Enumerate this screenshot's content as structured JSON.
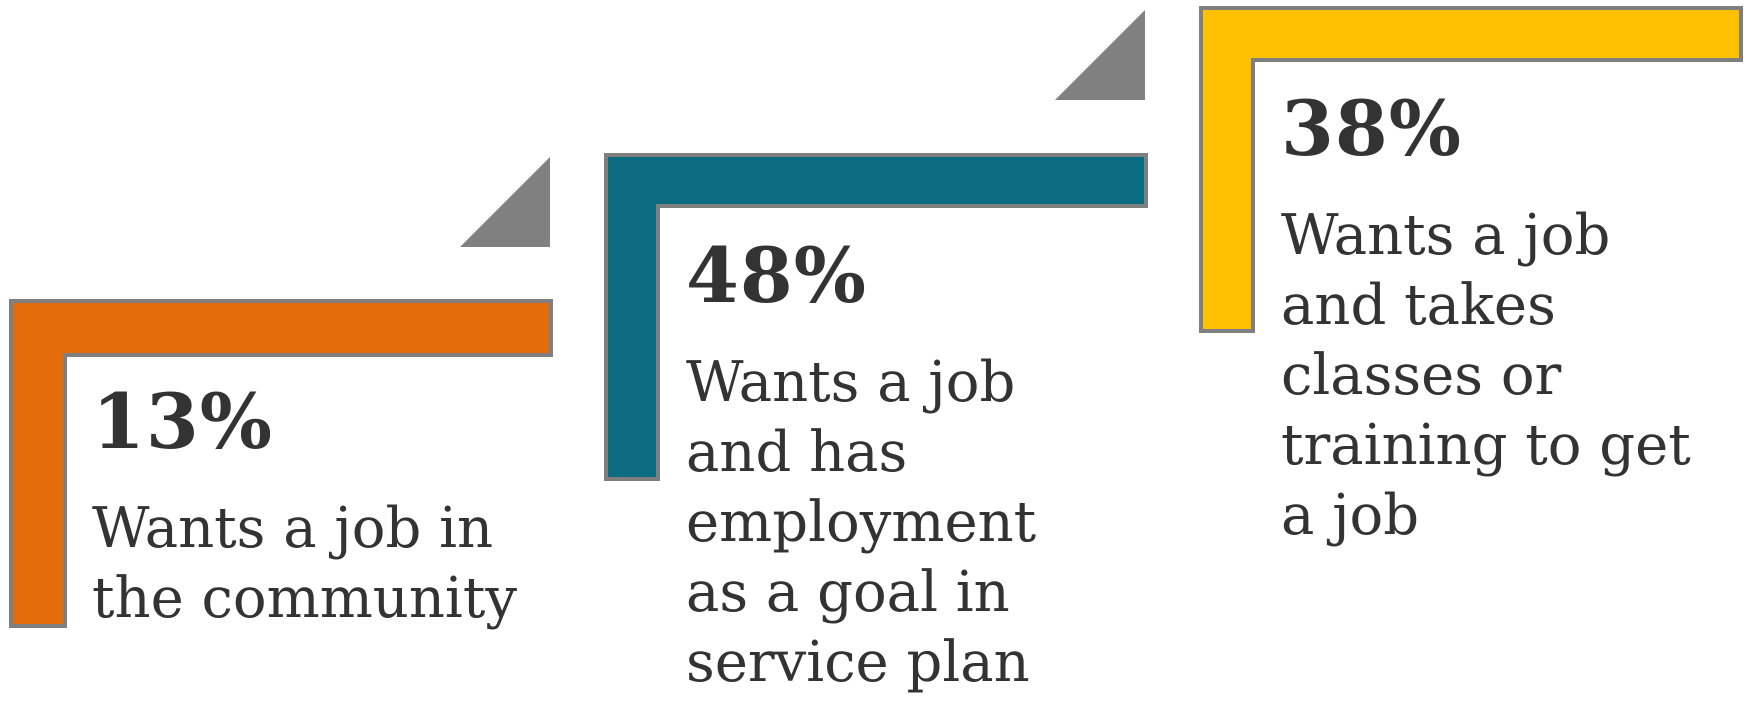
{
  "colors": {
    "outline": "#7f7f7f",
    "arrow": "#808080",
    "text": "#333333",
    "step1": "#e46c0a",
    "step2": "#0b6b80",
    "step3": "#ffc000"
  },
  "steps": [
    {
      "percent": "13%",
      "lines": [
        "Wants a job in",
        "the community"
      ]
    },
    {
      "percent": "48%",
      "lines": [
        "Wants a job",
        "and has",
        "employment",
        "as a goal in",
        "service plan"
      ]
    },
    {
      "percent": "38%",
      "lines": [
        "Wants a job",
        "and takes",
        "classes or",
        "training to get",
        "a job"
      ]
    }
  ]
}
